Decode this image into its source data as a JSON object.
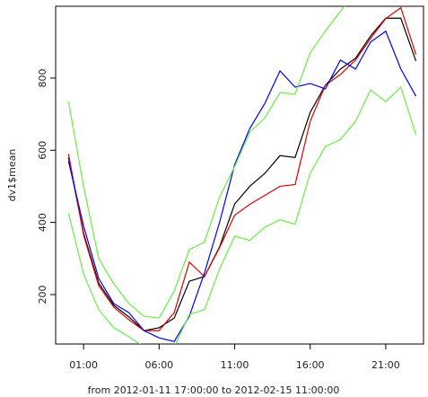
{
  "chart_data": {
    "type": "line",
    "x_label": "from 2012-01-11 17:00:00 to 2012-02-15 11:00:00",
    "y_label": "dv1$mean",
    "x": [
      0,
      1,
      2,
      3,
      4,
      5,
      6,
      7,
      8,
      9,
      10,
      11,
      12,
      13,
      14,
      15,
      16,
      17,
      18,
      19,
      20,
      21,
      22,
      23
    ],
    "series": [
      {
        "color": "#000000",
        "values": [
          580,
          370,
          232,
          170,
          138,
          100,
          108,
          135,
          237,
          250,
          332,
          451,
          500,
          536,
          585,
          580,
          705,
          780,
          825,
          855,
          917,
          966,
          966,
          847
        ]
      },
      {
        "color": "#dd0000",
        "values": [
          590,
          365,
          225,
          165,
          130,
          100,
          100,
          150,
          290,
          250,
          330,
          420,
          450,
          475,
          500,
          505,
          680,
          780,
          810,
          850,
          910,
          965,
          995,
          865
        ]
      },
      {
        "color": "#0000ee",
        "values": [
          570,
          390,
          245,
          175,
          150,
          100,
          80,
          70,
          140,
          260,
          400,
          560,
          660,
          730,
          820,
          775,
          785,
          770,
          850,
          825,
          900,
          930,
          825,
          750
        ]
      },
      {
        "color": "#66ee44",
        "values": [
          735,
          500,
          300,
          230,
          175,
          140,
          135,
          210,
          325,
          345,
          470,
          555,
          650,
          690,
          760,
          755,
          870,
          930,
          985,
          1040,
          null,
          null,
          null,
          null
        ]
      },
      {
        "color": "#66ee44",
        "values": [
          425,
          257,
          158,
          108,
          83,
          55,
          40,
          55,
          145,
          158,
          270,
          362,
          350,
          387,
          407,
          395,
          536,
          610,
          630,
          680,
          767,
          735,
          775,
          643
        ]
      }
    ],
    "xlim": [
      -0.85,
      23.5
    ],
    "ylim": [
      63,
      999
    ],
    "xticks": [
      {
        "value": 1,
        "label": "01:00"
      },
      {
        "value": 6,
        "label": "06:00"
      },
      {
        "value": 11,
        "label": "11:00"
      },
      {
        "value": 16,
        "label": "16:00"
      },
      {
        "value": 21,
        "label": "21:00"
      }
    ],
    "yticks": [
      200,
      400,
      600,
      800
    ]
  }
}
